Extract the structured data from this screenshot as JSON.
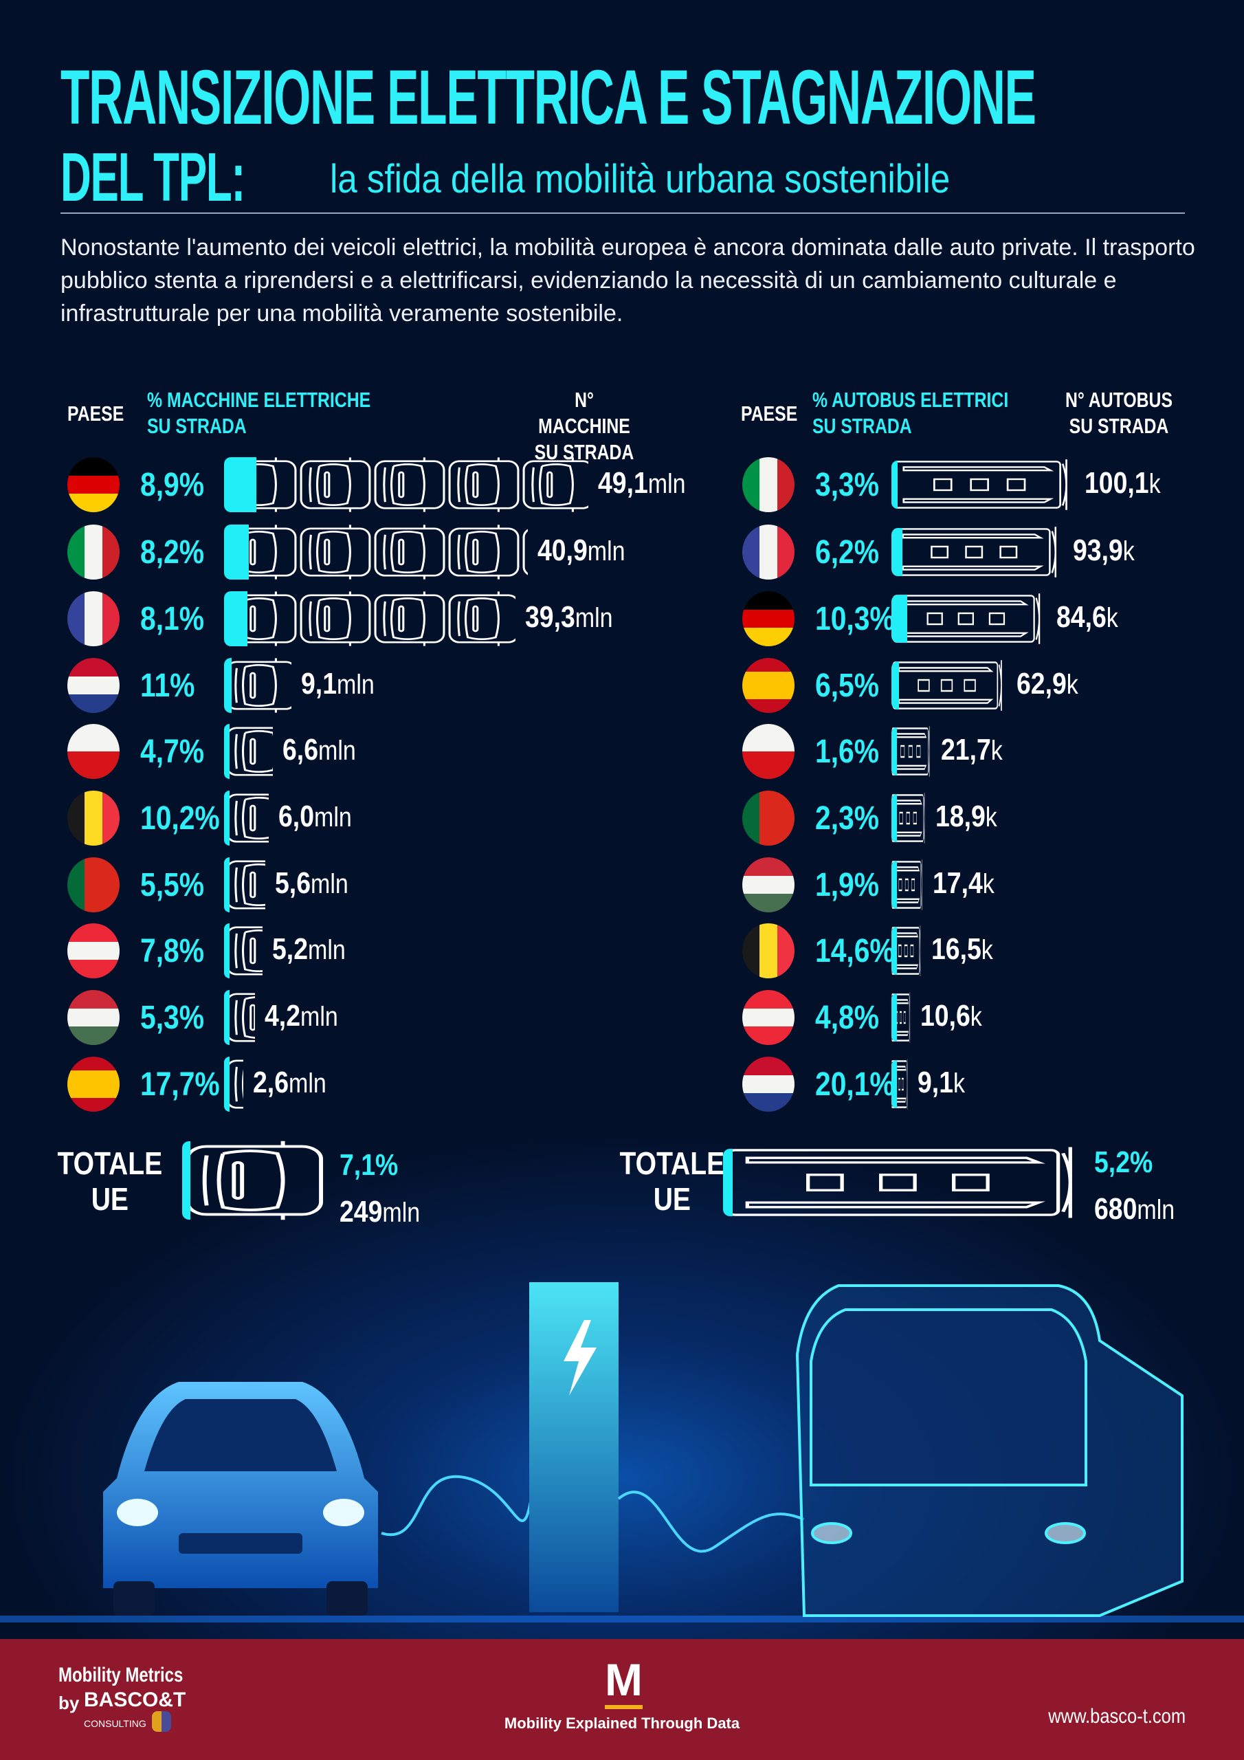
{
  "title": {
    "line1": "TRANSIZIONE ELETTRICA E STAGNAZIONE",
    "line2": "DEL TPL:",
    "subtitle": "la sfida della mobilità urbana sostenibile"
  },
  "intro": "Nonostante l'aumento dei veicoli elettrici, la mobilità europea è ancora dominata dalle auto private. Il trasporto pubblico stenta a riprendersi e a elettrificarsi, evidenziando la necessità di un cambiamento culturale e infrastrutturale per una mobilità veramente sostenibile.",
  "colors": {
    "accent": "#2ff0f8",
    "background": "#03102a",
    "footer": "#8f182c"
  },
  "flags": {
    "germany": {
      "dir": "h",
      "c": [
        "#000000",
        "#dd0000",
        "#ffce00"
      ]
    },
    "italy": {
      "dir": "v",
      "c": [
        "#009246",
        "#f4f5f0",
        "#cd212a"
      ]
    },
    "france": {
      "dir": "v",
      "c": [
        "#35449a",
        "#f4f5f0",
        "#e3283e"
      ]
    },
    "netherlands": {
      "dir": "h",
      "c": [
        "#c8102e",
        "#f4f5f0",
        "#253d8a"
      ]
    },
    "czechia": {
      "dir": "h",
      "c": [
        "#f4f5f0",
        "#d7141a"
      ]
    },
    "belgium": {
      "dir": "v",
      "c": [
        "#1a1a1a",
        "#fdda24",
        "#ef3340"
      ]
    },
    "portugal": {
      "dir": "v",
      "c": [
        "#046a38",
        "#da291c",
        "#da291c"
      ]
    },
    "austria": {
      "dir": "h",
      "c": [
        "#ed2939",
        "#f4f5f0",
        "#ed2939"
      ]
    },
    "hungary": {
      "dir": "h",
      "c": [
        "#ce2939",
        "#f4f5f0",
        "#477050"
      ]
    },
    "spain": {
      "dir": "h",
      "c": [
        "#c60b1e",
        "#ffc400",
        "#ffc400",
        "#c60b1e"
      ]
    }
  },
  "cars": {
    "header": {
      "country": "PAESE",
      "pct": "% MACCHINE ELETTRICHE SU STRADA",
      "count": "N° MACCHINE SU STRADA"
    },
    "unit": "mln",
    "rows": [
      {
        "flag": "germany",
        "pct": "8,9%",
        "pct_value": 8.9,
        "count": "49,1",
        "count_value": 49.1
      },
      {
        "flag": "italy",
        "pct": "8,2%",
        "pct_value": 8.2,
        "count": "40,9",
        "count_value": 40.9
      },
      {
        "flag": "france",
        "pct": "8,1%",
        "pct_value": 8.1,
        "count": "39,3",
        "count_value": 39.3
      },
      {
        "flag": "netherlands",
        "pct": "11%",
        "pct_value": 11,
        "count": "9,1",
        "count_value": 9.1
      },
      {
        "flag": "czechia",
        "pct": "4,7%",
        "pct_value": 4.7,
        "count": "6,6",
        "count_value": 6.6
      },
      {
        "flag": "belgium",
        "pct": "10,2%",
        "pct_value": 10.2,
        "count": "6,0",
        "count_value": 6.0
      },
      {
        "flag": "portugal",
        "pct": "5,5%",
        "pct_value": 5.5,
        "count": "5,6",
        "count_value": 5.6
      },
      {
        "flag": "austria",
        "pct": "7,8%",
        "pct_value": 7.8,
        "count": "5,2",
        "count_value": 5.2
      },
      {
        "flag": "hungary",
        "pct": "5,3%",
        "pct_value": 5.3,
        "count": "4,2",
        "count_value": 4.2
      },
      {
        "flag": "spain",
        "pct": "17,7%",
        "pct_value": 17.7,
        "count": "2,6",
        "count_value": 2.6
      }
    ],
    "total": {
      "label1": "TOTALE",
      "label2": "UE",
      "pct": "7,1%",
      "count": "249",
      "unit": "mln"
    }
  },
  "buses": {
    "header": {
      "country": "PAESE",
      "pct": "% AUTOBUS ELETTRICI SU STRADA",
      "count": "N° AUTOBUS SU STRADA"
    },
    "unit": "k",
    "rows": [
      {
        "flag": "italy",
        "pct": "3,3%",
        "pct_value": 3.3,
        "count": "100,1",
        "count_value": 100.1
      },
      {
        "flag": "france",
        "pct": "6,2%",
        "pct_value": 6.2,
        "count": "93,9",
        "count_value": 93.9
      },
      {
        "flag": "germany",
        "pct": "10,3%",
        "pct_value": 10.3,
        "count": "84,6",
        "count_value": 84.6
      },
      {
        "flag": "spain",
        "pct": "6,5%",
        "pct_value": 6.5,
        "count": "62,9",
        "count_value": 62.9
      },
      {
        "flag": "czechia",
        "pct": "1,6%",
        "pct_value": 1.6,
        "count": "21,7",
        "count_value": 21.7
      },
      {
        "flag": "portugal",
        "pct": "2,3%",
        "pct_value": 2.3,
        "count": "18,9",
        "count_value": 18.9
      },
      {
        "flag": "hungary",
        "pct": "1,9%",
        "pct_value": 1.9,
        "count": "17,4",
        "count_value": 17.4
      },
      {
        "flag": "belgium",
        "pct": "14,6%",
        "pct_value": 14.6,
        "count": "16,5",
        "count_value": 16.5
      },
      {
        "flag": "austria",
        "pct": "4,8%",
        "pct_value": 4.8,
        "count": "10,6",
        "count_value": 10.6
      },
      {
        "flag": "netherlands",
        "pct": "20,1%",
        "pct_value": 20.1,
        "count": "9,1",
        "count_value": 9.1
      }
    ],
    "total": {
      "label1": "TOTALE",
      "label2": "UE",
      "pct": "5,2%",
      "count": "680",
      "unit": "mln"
    }
  },
  "footer": {
    "brand1": "Mobility Metrics",
    "brand_by": "by",
    "brand_logo": "BASCO&T CONSULTING",
    "center_logo": "M",
    "tagline": "Mobility Explained Through Data",
    "website": "www.basco-t.com"
  }
}
